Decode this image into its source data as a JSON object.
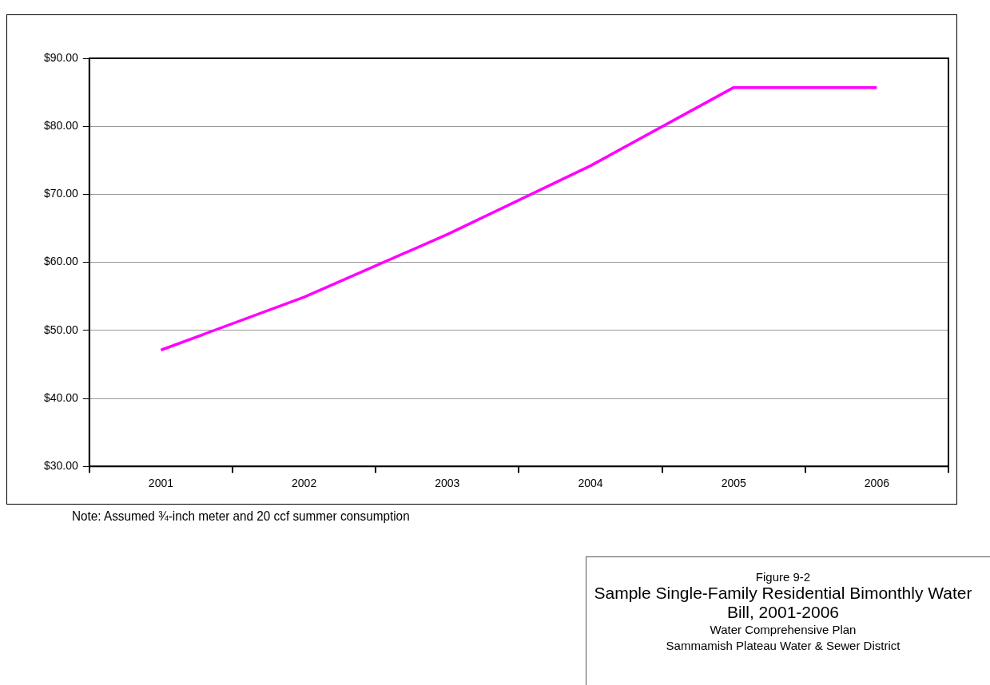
{
  "chart_data": {
    "type": "line",
    "title": "Sample Single-Family Residential Bimonthly Water Bill, 2001-2006",
    "subtitle": "Figure 9-2",
    "categories": [
      "2001",
      "2002",
      "2003",
      "2004",
      "2005",
      "2006"
    ],
    "series": [
      {
        "color": "#ff00ff",
        "values": [
          47.1,
          54.9,
          64.1,
          74.2,
          85.7,
          85.7
        ]
      }
    ],
    "ylim": [
      30,
      90
    ],
    "yticks": [
      {
        "value": 30,
        "label": "$30.00"
      },
      {
        "value": 40,
        "label": "$40.00"
      },
      {
        "value": 50,
        "label": "$50.00"
      },
      {
        "value": 60,
        "label": "$60.00"
      },
      {
        "value": 70,
        "label": "$70.00"
      },
      {
        "value": 80,
        "label": "$80.00"
      },
      {
        "value": 90,
        "label": "$90.00"
      }
    ],
    "grid": "y",
    "legend": false,
    "marker": "none",
    "line_style": "solid",
    "annotations": [
      "Note: Assumed ¾-inch meter and 20 ccf summer consumption",
      "Water Comprehensive Plan",
      "Sammamish Plateau Water & Sewer District"
    ]
  }
}
